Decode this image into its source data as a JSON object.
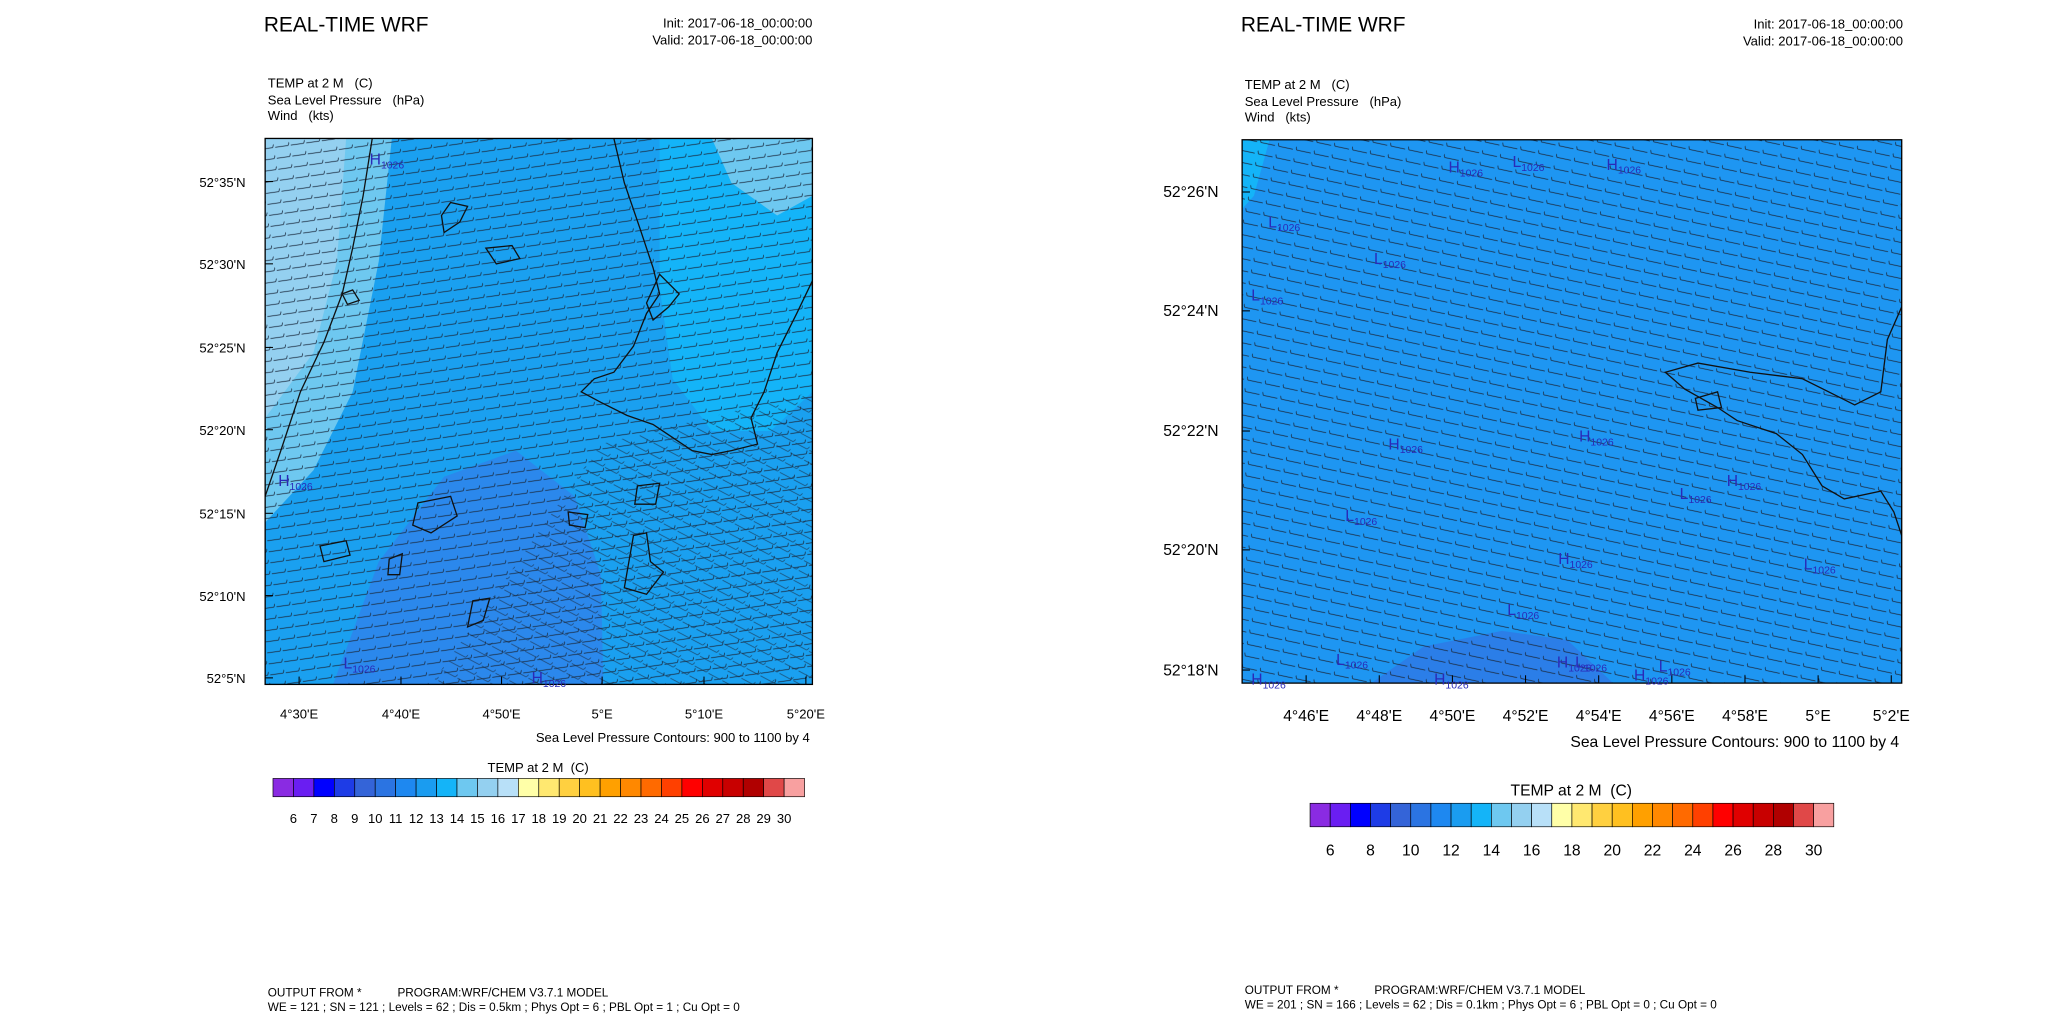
{
  "panels": [
    {
      "title": "REAL-TIME WRF",
      "init": "Init: 2017-06-18_00:00:00",
      "valid": "Valid: 2017-06-18_00:00:00",
      "fields": [
        "TEMP at 2 M   (C)",
        "Sea Level Pressure   (hPa)",
        "Wind   (kts)"
      ],
      "lat_labels": [
        "52°35'N",
        "52°30'N",
        "52°25'N",
        "52°20'N",
        "52°15'N",
        "52°10'N",
        "52°5'N"
      ],
      "lon_labels": [
        "4°30'E",
        "4°40'E",
        "4°50'E",
        "5°E",
        "5°10'E",
        "5°20'E"
      ],
      "contour_note": "Sea Level Pressure Contours: 900 to 1100 by 4",
      "colorbar": {
        "title": "TEMP at 2 M  (C)",
        "colors": [
          "#8a2be2",
          "#6a1ef2",
          "#0000ff",
          "#1e3ce6",
          "#3464d8",
          "#2b74e2",
          "#1e88f0",
          "#1a9cf0",
          "#14b4f8",
          "#6ec8f0",
          "#94d0f0",
          "#b8e0f8",
          "#ffffa8",
          "#ffe870",
          "#ffd040",
          "#ffc020",
          "#ffa000",
          "#ff8800",
          "#ff6a00",
          "#ff4000",
          "#ff0000",
          "#e00000",
          "#c80000",
          "#b00000",
          "#e04848",
          "#f8a0a0"
        ],
        "labels": [
          6,
          7,
          8,
          9,
          10,
          11,
          12,
          13,
          14,
          15,
          16,
          17,
          18,
          19,
          20,
          21,
          22,
          23,
          24,
          25,
          26,
          27,
          28,
          29,
          30
        ]
      },
      "pressure_marks": [
        {
          "letter": "H",
          "value": "1026"
        },
        {
          "letter": "H",
          "value": "1026"
        },
        {
          "letter": "L",
          "value": "1026"
        },
        {
          "letter": "H",
          "value": "1026"
        }
      ],
      "footer": [
        "OUTPUT FROM *           PROGRAM:WRF/CHEM V3.7.1 MODEL",
        "WE = 121 ; SN = 121 ; Levels = 62 ; Dis = 0.5km ; Phys Opt = 6 ; PBL Opt = 1 ; Cu Opt = 0"
      ]
    },
    {
      "title": "REAL-TIME WRF",
      "init": "Init: 2017-06-18_00:00:00",
      "valid": "Valid: 2017-06-18_00:00:00",
      "fields": [
        "TEMP at 2 M   (C)",
        "Sea Level Pressure   (hPa)",
        "Wind   (kts)"
      ],
      "lat_labels": [
        "52°26'N",
        "52°24'N",
        "52°22'N",
        "52°20'N",
        "52°18'N"
      ],
      "lon_labels": [
        "4°46'E",
        "4°48'E",
        "4°50'E",
        "4°52'E",
        "4°54'E",
        "4°56'E",
        "4°58'E",
        "5°E",
        "5°2'E"
      ],
      "contour_note": "Sea Level Pressure Contours: 900 to 1100 by 4",
      "colorbar": {
        "title": "TEMP at 2 M  (C)",
        "colors": [
          "#8a2be2",
          "#6a1ef2",
          "#0000ff",
          "#1e3ce6",
          "#3464d8",
          "#2b74e2",
          "#1e88f0",
          "#1a9cf0",
          "#14b4f8",
          "#6ec8f0",
          "#94d0f0",
          "#b8e0f8",
          "#ffffa8",
          "#ffe870",
          "#ffd040",
          "#ffc020",
          "#ffa000",
          "#ff8800",
          "#ff6a00",
          "#ff4000",
          "#ff0000",
          "#e00000",
          "#c80000",
          "#b00000",
          "#e04848",
          "#f8a0a0"
        ],
        "labels": [
          6,
          8,
          10,
          12,
          14,
          16,
          18,
          20,
          22,
          24,
          26,
          28,
          30
        ]
      },
      "pressure_marks": [
        {
          "letter": "H",
          "value": "1026"
        },
        {
          "letter": "L",
          "value": "1026"
        },
        {
          "letter": "H",
          "value": "1026"
        },
        {
          "letter": "L",
          "value": "1026"
        },
        {
          "letter": "L",
          "value": "1026"
        },
        {
          "letter": "L",
          "value": "1026"
        },
        {
          "letter": "H",
          "value": "1026"
        },
        {
          "letter": "H",
          "value": "1026"
        },
        {
          "letter": "L",
          "value": "1026"
        },
        {
          "letter": "H",
          "value": "1026"
        },
        {
          "letter": "L",
          "value": "1026"
        },
        {
          "letter": "H",
          "value": "1026"
        },
        {
          "letter": "L",
          "value": "1026"
        },
        {
          "letter": "L",
          "value": "1026"
        },
        {
          "letter": "L",
          "value": "1026"
        },
        {
          "letter": "H",
          "value": "1026"
        },
        {
          "letter": "H",
          "value": "1026"
        },
        {
          "letter": "H",
          "value": "1026"
        },
        {
          "letter": "L",
          "value": "1026"
        },
        {
          "letter": "L",
          "value": "1026"
        },
        {
          "letter": "H",
          "value": "1026"
        }
      ],
      "footer": [
        "OUTPUT FROM *           PROGRAM:WRF/CHEM V3.7.1 MODEL",
        "WE = 201 ; SN = 166 ; Levels = 62 ; Dis = 0.1km ; Phys Opt = 6 ; PBL Opt = 0 ; Cu Opt = 0"
      ]
    }
  ]
}
